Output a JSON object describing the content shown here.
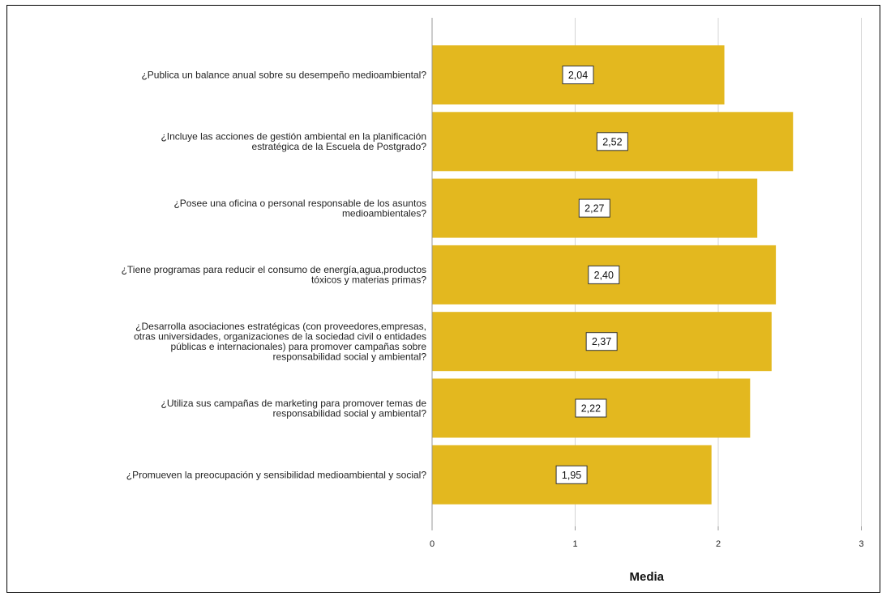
{
  "chart_data": {
    "type": "bar",
    "orientation": "horizontal",
    "categories": [
      [
        "¿Publica un balance anual sobre su desempeño medioambiental?"
      ],
      [
        "¿Incluye las acciones de gestión ambiental en la planificación",
        "estratégica de la Escuela de Postgrado?"
      ],
      [
        "¿Posee una oficina o personal responsable de los asuntos",
        "medioambientales?"
      ],
      [
        "¿Tiene programas para reducir el consumo de energía,agua,productos",
        "tóxicos y materias primas?"
      ],
      [
        "¿Desarrolla asociaciones estratégicas (con proveedores,empresas,",
        "otras universidades, organizaciones de la sociedad civil o entidades",
        "públicas e internacionales) para promover campañas sobre",
        "responsabilidad social y ambiental?"
      ],
      [
        "¿Utiliza sus campañas de marketing para promover temas de",
        "responsabilidad social y ambiental?"
      ],
      [
        "¿Promueven la preocupación y sensibilidad medioambiental y social?"
      ]
    ],
    "values": [
      2.04,
      2.52,
      2.27,
      2.4,
      2.37,
      2.22,
      1.95
    ],
    "value_labels": [
      "2,04",
      "2,52",
      "2,27",
      "2,40",
      "2,37",
      "2,22",
      "1,95"
    ],
    "xlabel": "Media",
    "xlim": [
      0,
      3
    ],
    "xticks": [
      0,
      1,
      2,
      3
    ],
    "xtick_labels": [
      "0",
      "1",
      "2",
      "3"
    ],
    "grid": true,
    "bar_color": "#e3b81f",
    "grid_color": "#d4d4d4"
  }
}
